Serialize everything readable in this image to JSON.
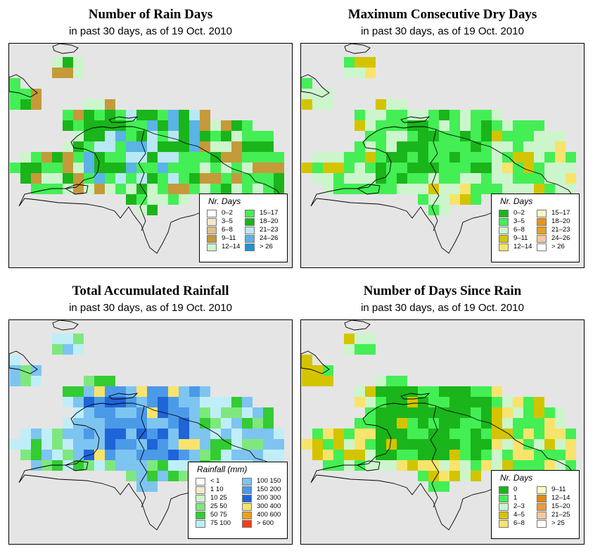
{
  "panels": [
    {
      "title": "Number of Rain Days",
      "subtitle": "in past 30 days, as of  19 Oct. 2010",
      "legend": {
        "title": "Nr. Days",
        "items": [
          {
            "label": "0–2",
            "color": "#ffffff"
          },
          {
            "label": "3–5",
            "color": "#f4e8cc"
          },
          {
            "label": "6–8",
            "color": "#dcc08c"
          },
          {
            "label": "9–11",
            "color": "#c49a3a"
          },
          {
            "label": "12–14",
            "color": "#ccf5cc"
          },
          {
            "label": "15–17",
            "color": "#44ee55"
          },
          {
            "label": "18–20",
            "color": "#1ab51a"
          },
          {
            "label": "21–23",
            "color": "#b8e8f4"
          },
          {
            "label": "24–26",
            "color": "#5ab4e6"
          },
          {
            "label": "> 26",
            "color": "#1a96d2"
          }
        ]
      }
    },
    {
      "title": "Maximum Consecutive Dry Days",
      "subtitle": "in past 30 days, as of  19 Oct. 2010",
      "legend": {
        "title": "Nr. Days",
        "items": [
          {
            "label": "0–2",
            "color": "#1ab51a"
          },
          {
            "label": "3–5",
            "color": "#44ee55"
          },
          {
            "label": "6–8",
            "color": "#ccf5cc"
          },
          {
            "label": "9–11",
            "color": "#d4c400"
          },
          {
            "label": "12–14",
            "color": "#f8e46c"
          },
          {
            "label": "15–17",
            "color": "#fff8c0"
          },
          {
            "label": "18–20",
            "color": "#e8941a"
          },
          {
            "label": "21–23",
            "color": "#e8a020"
          },
          {
            "label": "24–26",
            "color": "#f8c89c"
          },
          {
            "label": "> 26",
            "color": "#ffffff"
          }
        ]
      }
    },
    {
      "title": "Total Accumulated Rainfall",
      "subtitle": "in past 30 days, as of  19 Oct. 2010",
      "legend": {
        "title": "Rainfall (mm)",
        "items": [
          {
            "label": "< 1",
            "color": "#ffffff"
          },
          {
            "label": "1  10",
            "color": "#f4e8cc"
          },
          {
            "label": "10  25",
            "color": "#ccf5cc"
          },
          {
            "label": "25  50",
            "color": "#7ee87e"
          },
          {
            "label": "50  75",
            "color": "#33cc33"
          },
          {
            "label": "75  100",
            "color": "#c0eef8"
          },
          {
            "label": "100  150",
            "color": "#7ec4f0"
          },
          {
            "label": "150  200",
            "color": "#4a9ae8"
          },
          {
            "label": "200  300",
            "color": "#1f64d8"
          },
          {
            "label": "300  400",
            "color": "#f8e46c"
          },
          {
            "label": "400  600",
            "color": "#f0a020"
          },
          {
            "label": "> 600",
            "color": "#f04010"
          }
        ]
      }
    },
    {
      "title": "Number of Days Since Rain",
      "subtitle": "in past 30 days, as of  19 Oct. 2010",
      "legend": {
        "title": "Nr. Days",
        "items": [
          {
            "label": "0",
            "color": "#1ab51a"
          },
          {
            "label": "1",
            "color": "#44ee55"
          },
          {
            "label": "2–3",
            "color": "#ccf5cc"
          },
          {
            "label": "4–5",
            "color": "#d4c400"
          },
          {
            "label": "6–8",
            "color": "#f8e46c"
          },
          {
            "label": "9–11",
            "color": "#fff8c0"
          },
          {
            "label": "12–14",
            "color": "#e08a10"
          },
          {
            "label": "15–20",
            "color": "#e89a40"
          },
          {
            "label": "21–25",
            "color": "#f8c89c"
          },
          {
            "label": "> 25",
            "color": "#ffffff"
          }
        ]
      }
    }
  ]
}
